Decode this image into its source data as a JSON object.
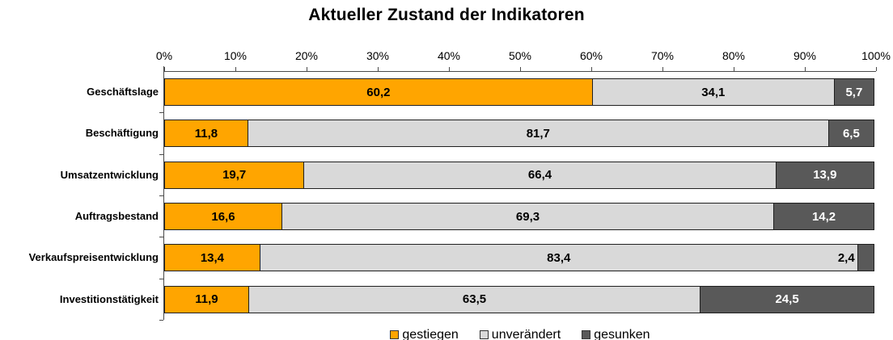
{
  "chart_data": {
    "type": "bar",
    "variant": "horizontal-100pct-stacked",
    "title": "Aktueller Zustand der Indikatoren",
    "categories": [
      "Geschäftslage",
      "Beschäftigung",
      "Umsatzentwicklung",
      "Auftragsbestand",
      "Verkaufspreisentwicklung",
      "Investitionstätigkeit"
    ],
    "series": [
      {
        "name": "gestiegen",
        "color": "#FFA500",
        "text_color": "#000000",
        "values": [
          60.2,
          11.8,
          19.7,
          16.6,
          13.4,
          11.9
        ]
      },
      {
        "name": "unverändert",
        "color": "#D9D9D9",
        "text_color": "#000000",
        "values": [
          34.1,
          81.7,
          66.4,
          69.3,
          83.4,
          63.5
        ]
      },
      {
        "name": "gesunken",
        "color": "#595959",
        "text_color": "#FFFFFF",
        "values": [
          5.7,
          6.5,
          13.9,
          14.2,
          2.4,
          24.5
        ]
      }
    ],
    "x_axis": {
      "min": 0,
      "max": 100,
      "tick_labels": [
        "0%",
        "10%",
        "20%",
        "30%",
        "40%",
        "50%",
        "60%",
        "70%",
        "80%",
        "90%",
        "100%"
      ],
      "position": "top",
      "grid": false
    },
    "legend": {
      "position": "bottom",
      "entries": [
        "gestiegen",
        "unverändert",
        "gesunken"
      ]
    },
    "value_decimal_separator": ",",
    "colors": {
      "axis_line": "#4a4a4a",
      "segment_border": "#202020",
      "background": "#ffffff",
      "text": "#000000"
    }
  }
}
